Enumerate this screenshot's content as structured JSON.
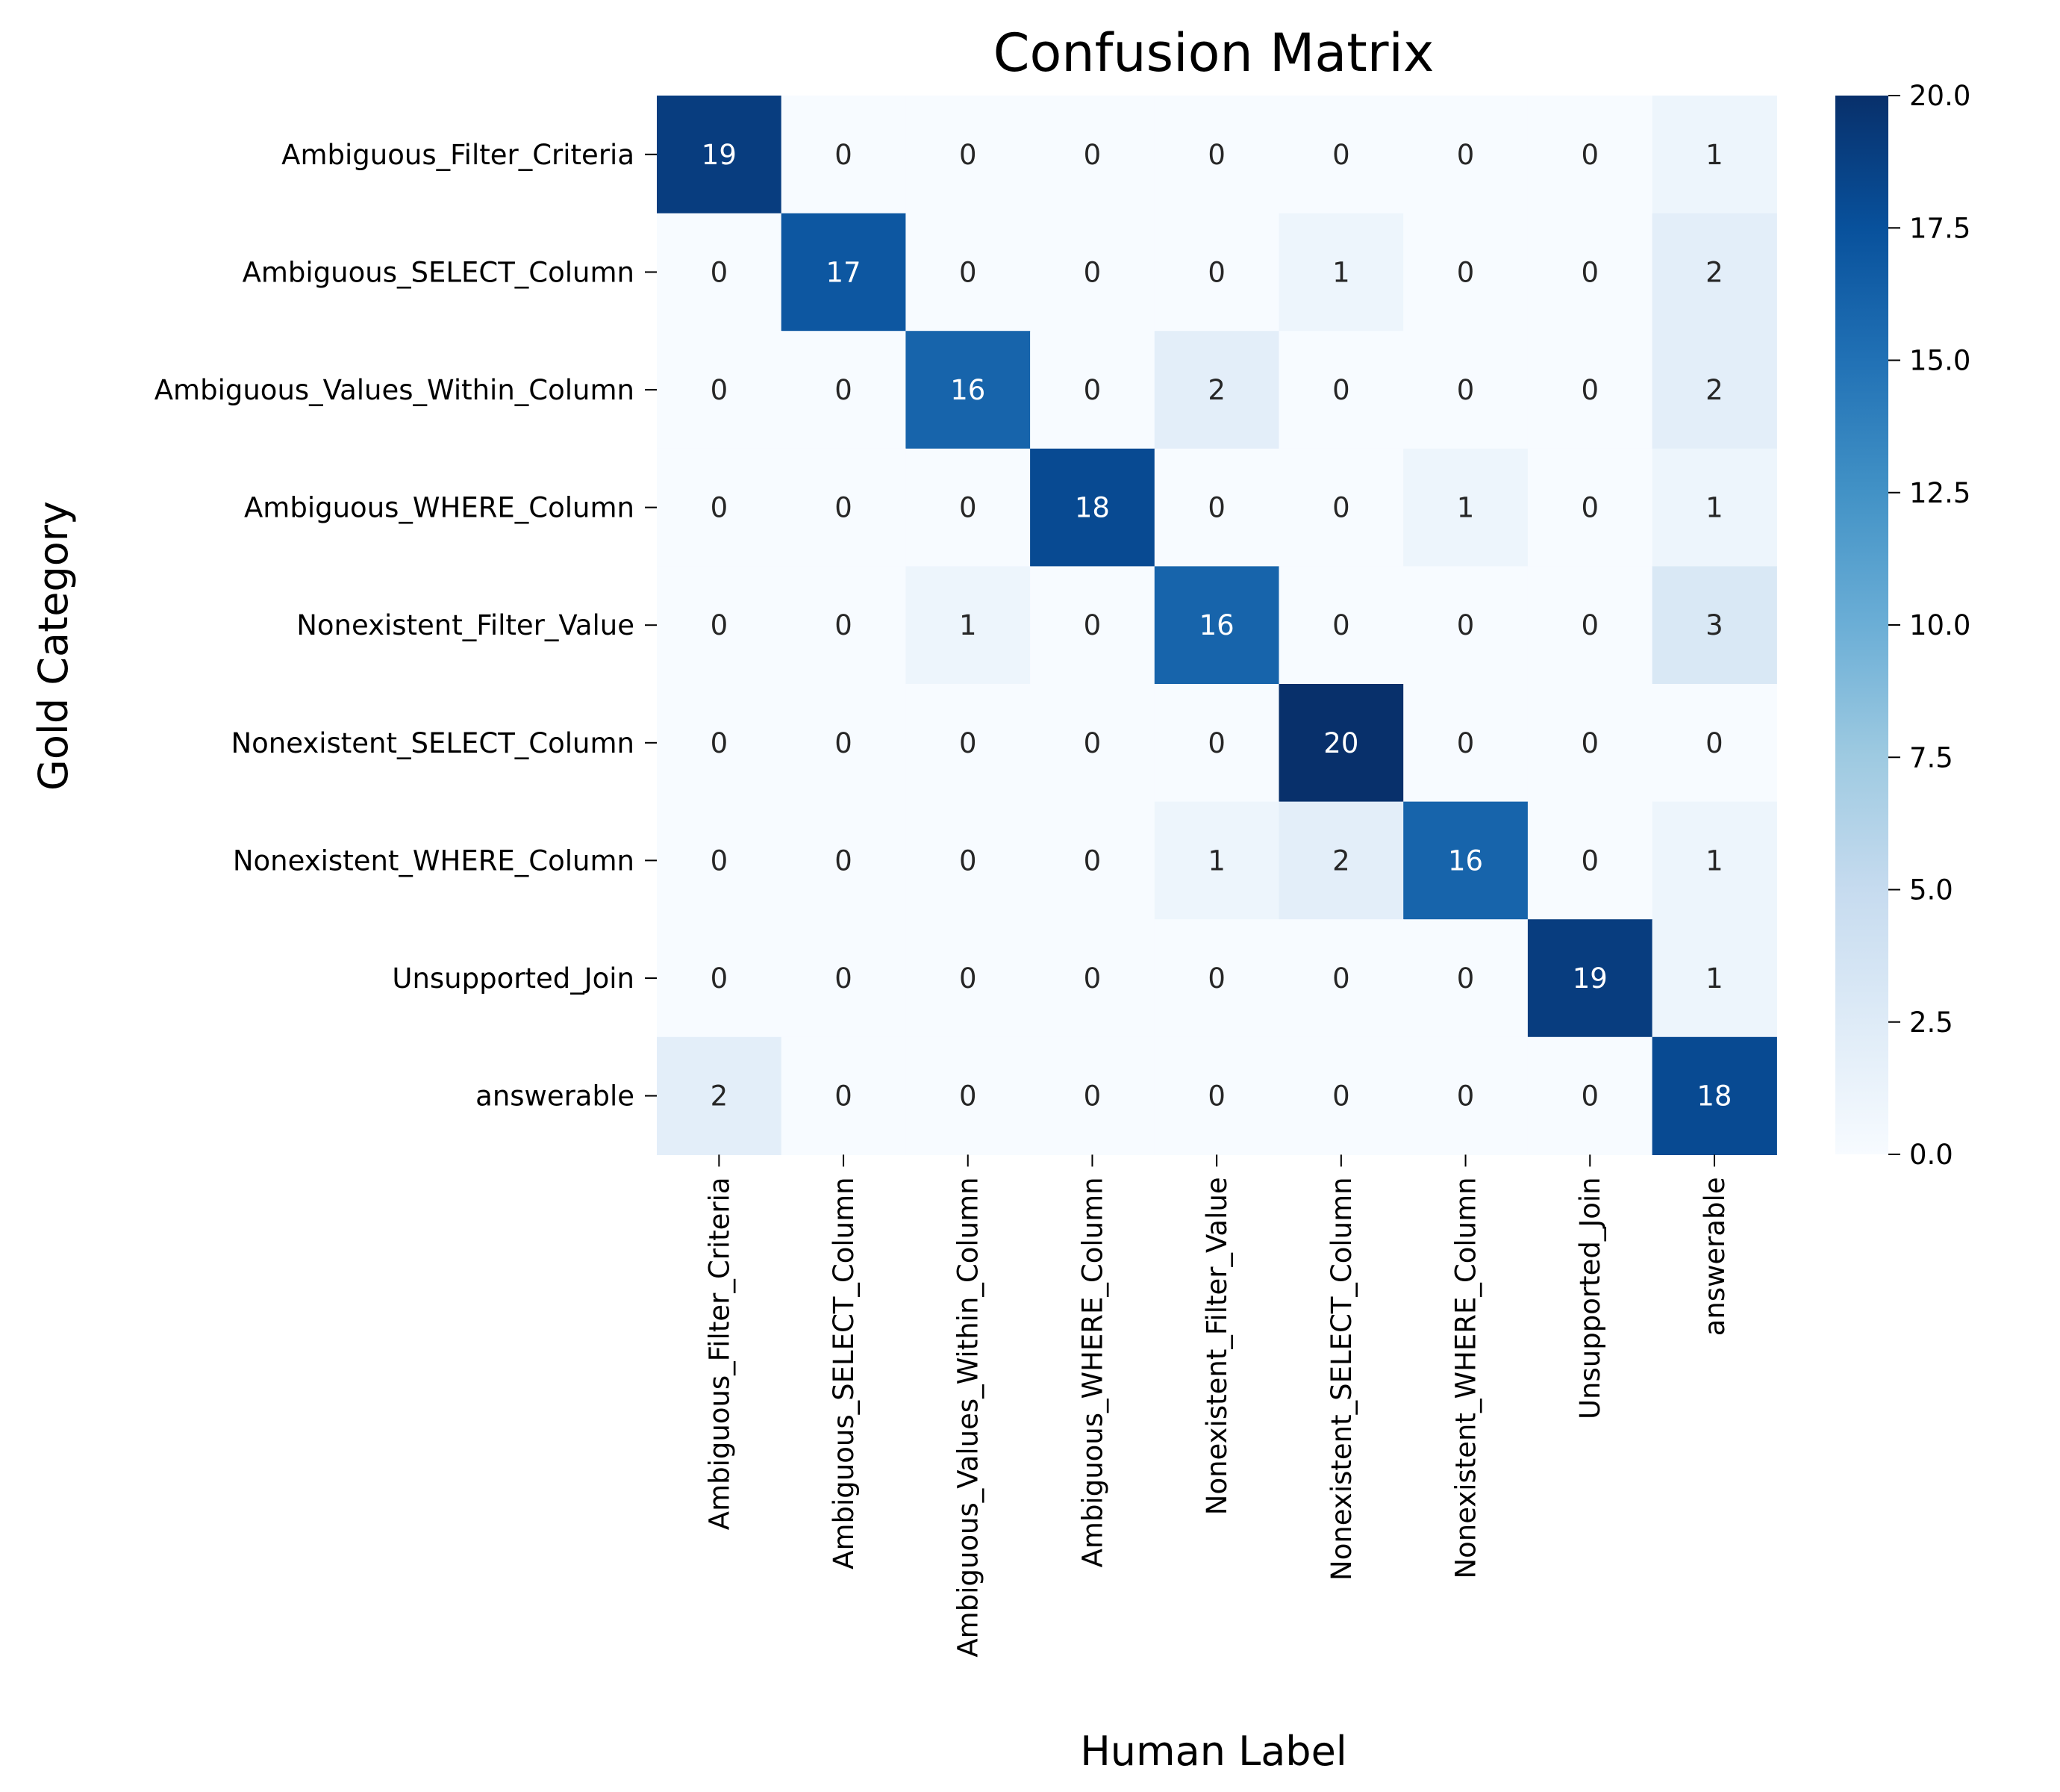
{
  "chart_data": {
    "type": "heatmap",
    "title": "Confusion Matrix",
    "xlabel": "Human Label",
    "ylabel": "Gold Category",
    "rows": [
      "Ambiguous_Filter_Criteria",
      "Ambiguous_SELECT_Column",
      "Ambiguous_Values_Within_Column",
      "Ambiguous_WHERE_Column",
      "Nonexistent_Filter_Value",
      "Nonexistent_SELECT_Column",
      "Nonexistent_WHERE_Column",
      "Unsupported_Join",
      "answerable"
    ],
    "columns": [
      "Ambiguous_Filter_Criteria",
      "Ambiguous_SELECT_Column",
      "Ambiguous_Values_Within_Column",
      "Ambiguous_WHERE_Column",
      "Nonexistent_Filter_Value",
      "Nonexistent_SELECT_Column",
      "Nonexistent_WHERE_Column",
      "Unsupported_Join",
      "answerable"
    ],
    "values": [
      [
        19,
        0,
        0,
        0,
        0,
        0,
        0,
        0,
        1
      ],
      [
        0,
        17,
        0,
        0,
        0,
        1,
        0,
        0,
        2
      ],
      [
        0,
        0,
        16,
        0,
        2,
        0,
        0,
        0,
        2
      ],
      [
        0,
        0,
        0,
        18,
        0,
        0,
        1,
        0,
        1
      ],
      [
        0,
        0,
        1,
        0,
        16,
        0,
        0,
        0,
        3
      ],
      [
        0,
        0,
        0,
        0,
        0,
        20,
        0,
        0,
        0
      ],
      [
        0,
        0,
        0,
        0,
        1,
        2,
        16,
        0,
        1
      ],
      [
        0,
        0,
        0,
        0,
        0,
        0,
        0,
        19,
        1
      ],
      [
        2,
        0,
        0,
        0,
        0,
        0,
        0,
        0,
        18
      ]
    ],
    "colormap": "Blues",
    "vmin": 0,
    "vmax": 20,
    "colorbar_ticks": [
      "0.0",
      "2.5",
      "5.0",
      "7.5",
      "10.0",
      "12.5",
      "15.0",
      "17.5",
      "20.0"
    ],
    "colorbar_tick_values": [
      0,
      2.5,
      5,
      7.5,
      10,
      12.5,
      15,
      17.5,
      20
    ]
  }
}
